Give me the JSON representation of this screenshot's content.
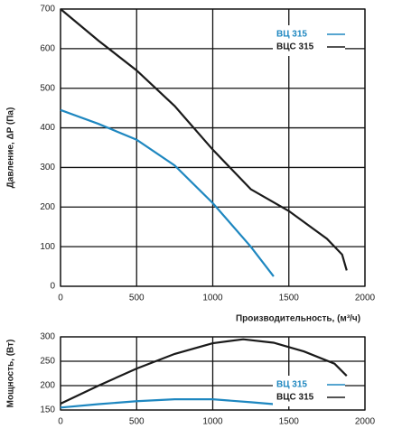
{
  "chart_data": [
    {
      "type": "line",
      "y_label": "Давление, ΔP (Па)",
      "x_label": "Производительность, (м³/ч)",
      "xlim": [
        0,
        2000
      ],
      "xticks": [
        0,
        500,
        1000,
        1500,
        2000
      ],
      "ylim": [
        0,
        700
      ],
      "yticks": [
        0,
        100,
        200,
        300,
        400,
        500,
        600,
        700
      ],
      "grid": true,
      "legend": "upper right",
      "series": [
        {
          "name": "ВЦ 315",
          "color": "#1e87c0",
          "x": [
            0,
            250,
            500,
            750,
            1000,
            1250,
            1400
          ],
          "values": [
            445,
            410,
            370,
            305,
            210,
            100,
            25
          ]
        },
        {
          "name": "ВЦС 315",
          "color": "#1a1a1a",
          "x": [
            0,
            250,
            500,
            750,
            1000,
            1250,
            1500,
            1750,
            1850,
            1880
          ],
          "values": [
            700,
            620,
            545,
            455,
            345,
            245,
            190,
            120,
            80,
            40
          ]
        }
      ]
    },
    {
      "type": "line",
      "y_label": "Мощность, (Вт)",
      "xlim": [
        0,
        2000
      ],
      "xticks": [
        0,
        500,
        1000,
        1500,
        2000
      ],
      "ylim": [
        150,
        300
      ],
      "yticks": [
        150,
        200,
        250,
        300
      ],
      "grid": true,
      "legend": "lower right",
      "series": [
        {
          "name": "ВЦ 315",
          "color": "#1e87c0",
          "x": [
            0,
            250,
            500,
            750,
            1000,
            1250,
            1400
          ],
          "values": [
            155,
            162,
            168,
            172,
            172,
            166,
            162
          ]
        },
        {
          "name": "ВЦС 315",
          "color": "#1a1a1a",
          "x": [
            0,
            250,
            500,
            750,
            1000,
            1200,
            1400,
            1600,
            1800,
            1880
          ],
          "values": [
            163,
            200,
            235,
            265,
            287,
            295,
            288,
            270,
            245,
            220
          ]
        }
      ]
    }
  ]
}
